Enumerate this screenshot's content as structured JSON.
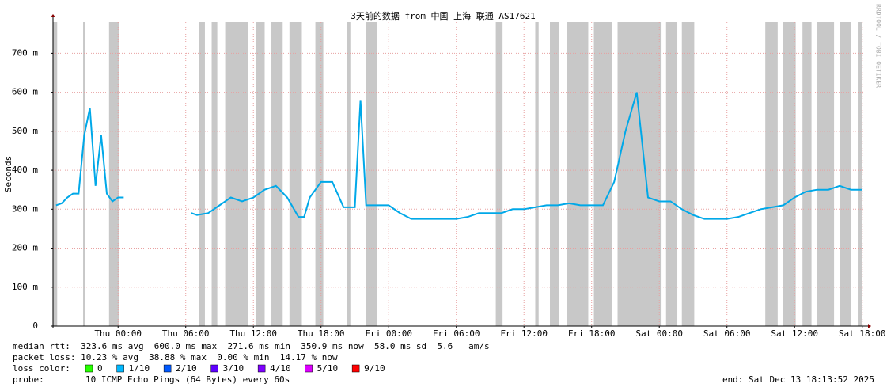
{
  "chart_data": {
    "type": "line",
    "title": "3天前的数据 from 中国 上海 联通 AS17621",
    "y_label": "Seconds",
    "watermark": "RRDTOOL / TOBI OETIKER",
    "xlim": [
      -5.77,
      66.23
    ],
    "xticks": [
      {
        "value": 0,
        "label": "Thu 00:00"
      },
      {
        "value": 6,
        "label": "Thu 06:00"
      },
      {
        "value": 12,
        "label": "Thu 12:00"
      },
      {
        "value": 18,
        "label": "Thu 18:00"
      },
      {
        "value": 24,
        "label": "Fri 00:00"
      },
      {
        "value": 30,
        "label": "Fri 06:00"
      },
      {
        "value": 36,
        "label": "Fri 12:00"
      },
      {
        "value": 42,
        "label": "Fri 18:00"
      },
      {
        "value": 48,
        "label": "Sat 00:00"
      },
      {
        "value": 54,
        "label": "Sat 06:00"
      },
      {
        "value": 60,
        "label": "Sat 12:00"
      },
      {
        "value": 66,
        "label": "Sat 18:00"
      }
    ],
    "ylim": [
      0,
      0.78
    ],
    "yticks": [
      0,
      {
        "value": 0.1,
        "label": "100 m"
      },
      {
        "value": 0.2,
        "label": "200 m"
      },
      {
        "value": 0.3,
        "label": "300 m"
      },
      {
        "value": 0.4,
        "label": "400 m"
      },
      {
        "value": 0.5,
        "label": "500 m"
      },
      {
        "value": 0.6,
        "label": "600 m"
      },
      {
        "value": 0.7,
        "label": "700 m"
      }
    ],
    "grid": true,
    "x": [
      -5.5,
      -5,
      -4.5,
      -4,
      -3.5,
      -3,
      -2.5,
      -2,
      -1.5,
      -1,
      -0.5,
      0,
      0.5,
      3,
      6.5,
      7,
      8,
      9,
      10,
      11,
      12,
      13,
      14,
      15,
      16,
      16.5,
      17,
      18,
      19,
      20,
      21,
      21.5,
      22,
      23,
      24,
      25,
      26,
      27,
      28,
      29,
      30,
      31,
      32,
      33,
      34,
      35,
      36,
      37,
      38,
      39,
      40,
      41,
      42,
      43,
      44,
      45,
      46,
      47,
      48,
      49,
      50,
      51,
      52,
      53,
      54,
      55,
      56,
      57,
      58,
      59,
      60,
      61,
      62,
      63,
      64,
      65,
      66
    ],
    "series": [
      {
        "name": "median rtt",
        "color": "#00a8e8",
        "values": [
          0.31,
          0.315,
          0.33,
          0.34,
          0.34,
          0.49,
          0.56,
          0.36,
          0.49,
          0.34,
          0.32,
          0.33,
          0.33,
          null,
          0.29,
          0.285,
          0.29,
          0.31,
          0.33,
          0.32,
          0.33,
          0.35,
          0.36,
          0.33,
          0.28,
          0.28,
          0.33,
          0.37,
          0.37,
          0.305,
          0.305,
          0.58,
          0.31,
          0.31,
          0.31,
          0.29,
          0.275,
          0.275,
          0.275,
          0.275,
          0.275,
          0.28,
          0.29,
          0.29,
          0.29,
          0.3,
          0.3,
          0.305,
          0.31,
          0.31,
          0.315,
          0.31,
          0.31,
          0.31,
          0.37,
          0.5,
          0.6,
          0.33,
          0.32,
          0.32,
          0.3,
          0.285,
          0.275,
          0.275,
          0.275,
          0.28,
          0.29,
          0.3,
          0.305,
          0.31,
          0.33,
          0.345,
          0.35,
          0.35,
          0.36,
          0.35,
          0.35
        ]
      }
    ],
    "loss_periods": [
      [
        -5.77,
        -5.4
      ],
      [
        -3.1,
        -2.9
      ],
      [
        -0.8,
        0.1
      ],
      [
        7.2,
        7.7
      ],
      [
        8.3,
        8.8
      ],
      [
        9.5,
        11.5
      ],
      [
        12.2,
        13
      ],
      [
        13.6,
        14.6
      ],
      [
        15.2,
        16.3
      ],
      [
        17.5,
        18.2
      ],
      [
        20.3,
        20.6
      ],
      [
        22,
        23
      ],
      [
        33.5,
        34.1
      ],
      [
        37,
        37.3
      ],
      [
        38.3,
        39.1
      ],
      [
        39.8,
        41.7
      ],
      [
        42.2,
        43.8
      ],
      [
        44.3,
        48.2
      ],
      [
        48.6,
        49.6
      ],
      [
        50,
        51.1
      ],
      [
        57.4,
        58.5
      ],
      [
        59,
        60.1
      ],
      [
        60.7,
        61.5
      ],
      [
        62,
        63.5
      ],
      [
        64,
        65
      ],
      [
        65.6,
        66
      ]
    ],
    "loss_color": "#c8c8c8",
    "stats": [
      "median rtt:  323.6 ms avg  600.0 ms max  271.6 ms min  350.9 ms now  58.0 ms sd  5.6   am/s",
      "packet loss: 10.23 % avg  38.88 % max  0.00 % min  14.17 % now"
    ],
    "legend_title": "loss color:",
    "legend": [
      {
        "label": "0",
        "color": "#26ff00"
      },
      {
        "label": "1/10",
        "color": "#00b8ff"
      },
      {
        "label": "2/10",
        "color": "#0059ff"
      },
      {
        "label": "3/10",
        "color": "#5e00ff"
      },
      {
        "label": "4/10",
        "color": "#7e00ff"
      },
      {
        "label": "5/10",
        "color": "#dd00ff"
      },
      {
        "label": "9/10",
        "color": "#ff0000"
      }
    ],
    "probe_label": "probe:",
    "probe": "10 ICMP Echo Pings (64 Bytes) every 60s",
    "end": "end: Sat Dec 13 18:13:52 2025"
  }
}
